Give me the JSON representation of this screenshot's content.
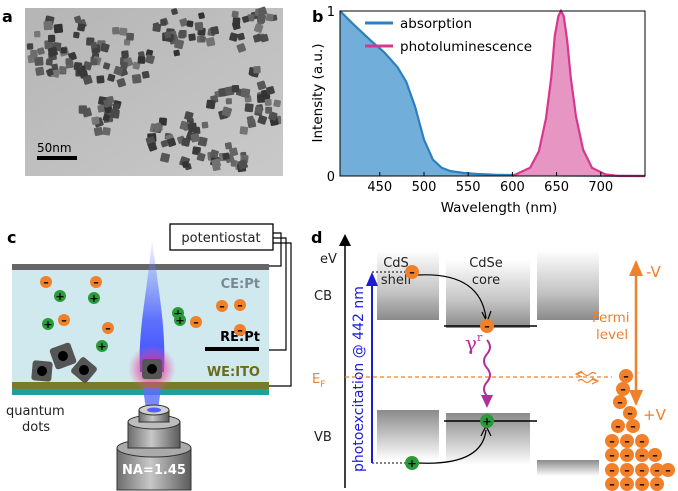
{
  "panels": {
    "a": {
      "label": "a",
      "scalebar": "50nm"
    },
    "b": {
      "label": "b",
      "ylabel": "Intensity (a.u.)",
      "xlabel": "Wavelength (nm)",
      "legend": [
        "absorption",
        "photoluminescence"
      ]
    },
    "c": {
      "label": "c",
      "potentiostat": "potentiostat",
      "ce": "CE:Pt",
      "re": "RE:Pt",
      "we": "WE:ITO",
      "qd_label_1": "quantum",
      "qd_label_2": "dots",
      "na": "NA=1.45"
    },
    "d": {
      "label": "d",
      "shell_1": "CdS",
      "shell_2": "shell",
      "core_1": "CdSe",
      "core_2": "core",
      "ev": "eV",
      "cb": "CB",
      "vb": "VB",
      "ef": "E",
      "ef_sub": "F",
      "photoexcitation": "photoexcitation @ 442 nm",
      "gamma": "γ",
      "gamma_sup": "r",
      "fermi_1": "Fermi",
      "fermi_2": "level",
      "minus_v": "-V",
      "plus_v": "+V"
    }
  },
  "colors": {
    "absorption": "#2e7fc0",
    "absorption_fill": "#6aaad8",
    "photoluminescence": "#d6378f",
    "photoluminescence_fill": "#e690c1",
    "electron": "#f0802a",
    "hole": "#2b9a3a",
    "fermi": "#f0802a",
    "photoexcitation": "#1c1cd6",
    "gamma": "#b0309a",
    "electrolyte": "#cfe9ef",
    "we": "#7a7a2a",
    "we_text": "#6b6b1a",
    "ce_text": "#7a8a94"
  },
  "chart_data": {
    "type": "area",
    "xlabel": "Wavelength (nm)",
    "ylabel": "Intensity (a.u.)",
    "xlim": [
      405,
      750
    ],
    "ylim": [
      0,
      1
    ],
    "xticks": [
      450,
      500,
      550,
      600,
      650,
      700
    ],
    "yticks": [
      0,
      1
    ],
    "legend_position": "top-left",
    "series": [
      {
        "name": "absorption",
        "x": [
          405,
          420,
          440,
          455,
          470,
          480,
          490,
          500,
          510,
          520,
          530,
          545,
          560,
          580,
          600,
          620,
          640,
          660,
          700,
          750
        ],
        "values": [
          1.0,
          0.92,
          0.82,
          0.75,
          0.66,
          0.57,
          0.42,
          0.22,
          0.1,
          0.05,
          0.03,
          0.018,
          0.012,
          0.008,
          0.006,
          0.005,
          0.004,
          0.003,
          0.002,
          0.0
        ]
      },
      {
        "name": "photoluminescence",
        "x": [
          600,
          620,
          630,
          638,
          644,
          648,
          652,
          655,
          658,
          662,
          666,
          672,
          680,
          690,
          705,
          720,
          750
        ],
        "values": [
          0.0,
          0.05,
          0.15,
          0.35,
          0.6,
          0.85,
          0.97,
          1.0,
          0.97,
          0.82,
          0.6,
          0.36,
          0.16,
          0.05,
          0.01,
          0.0,
          0.0
        ]
      }
    ]
  }
}
